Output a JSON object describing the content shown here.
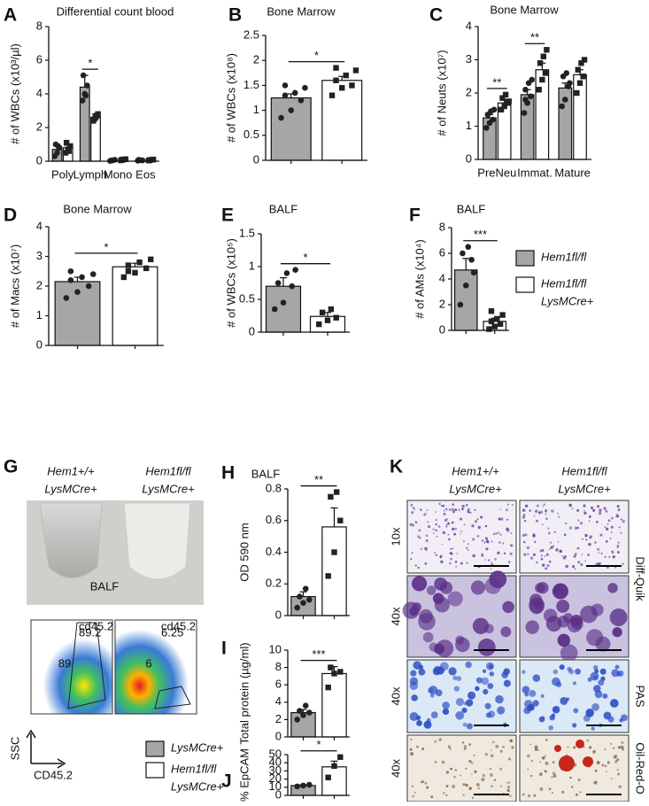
{
  "chart_data": [
    {
      "type": "bar",
      "panel": "A",
      "title": "Differential count blood",
      "ylabel": "# of WBCs (x10³/µl)",
      "categories": [
        "Poly",
        "Lymph",
        "Mono",
        "Eos"
      ],
      "series": [
        {
          "color": "#a6a6a6",
          "values": [
            0.7,
            4.4,
            0.05,
            0.05
          ],
          "errors": [
            0.2,
            0.7,
            0.02,
            0.02
          ],
          "points": [
            [
              0.3,
              0.5,
              0.8,
              1.0,
              0.9
            ],
            [
              3.6,
              4.0,
              4.5,
              5.1,
              3.9
            ],
            [
              0.02,
              0.05,
              0.08,
              0.04
            ],
            [
              0.03,
              0.06,
              0.05,
              0.08
            ]
          ]
        },
        {
          "color": "#ffffff",
          "values": [
            0.8,
            2.6,
            0.08,
            0.07
          ],
          "errors": [
            0.15,
            0.2,
            0.02,
            0.02
          ],
          "points": [
            [
              0.5,
              0.7,
              0.9,
              1.1,
              0.6
            ],
            [
              2.4,
              2.6,
              2.8,
              2.5,
              2.7
            ],
            [
              0.05,
              0.1,
              0.12,
              0.08
            ],
            [
              0.04,
              0.08,
              0.1,
              0.06
            ]
          ]
        }
      ],
      "significance": [
        {
          "label": "*",
          "category": 1
        }
      ],
      "ylim": [
        0,
        8
      ],
      "yticks": [
        0,
        2,
        4,
        6,
        8
      ]
    },
    {
      "type": "bar",
      "panel": "B",
      "title": "Bone Marrow",
      "ylabel": "# of WBCs (x10⁸)",
      "categories": [
        null,
        null
      ],
      "values": [
        1.25,
        1.6
      ],
      "errors": [
        0.08,
        0.08
      ],
      "colors": [
        "#a6a6a6",
        "#ffffff"
      ],
      "points": [
        [
          0.85,
          1.0,
          1.2,
          1.3,
          1.35,
          1.45,
          1.5
        ],
        [
          1.3,
          1.45,
          1.5,
          1.6,
          1.7,
          1.8,
          1.85
        ]
      ],
      "significance": "*",
      "ylim": [
        0,
        2.5
      ],
      "yticks": [
        0,
        0.5,
        1,
        1.5,
        2,
        2.5
      ]
    },
    {
      "type": "bar",
      "panel": "C",
      "title": "Bone Marrow",
      "ylabel": "# of Neuts (x10⁷)",
      "categories": [
        "PreNeu",
        "Immat.",
        "Mature"
      ],
      "series": [
        {
          "color": "#a6a6a6",
          "values": [
            1.25,
            1.95,
            2.15
          ],
          "errors": [
            0.1,
            0.15,
            0.15
          ],
          "points": [
            [
              0.95,
              1.1,
              1.2,
              1.35,
              1.45,
              1.5
            ],
            [
              1.4,
              1.7,
              1.9,
              2.1,
              2.3,
              2.4,
              1.8
            ],
            [
              1.6,
              1.8,
              2.2,
              2.5,
              2.6,
              2.3
            ]
          ]
        },
        {
          "color": "#ffffff",
          "values": [
            1.7,
            2.7,
            2.55
          ],
          "errors": [
            0.1,
            0.2,
            0.15
          ],
          "points": [
            [
              1.5,
              1.6,
              1.7,
              1.85,
              1.95,
              1.75
            ],
            [
              2.1,
              2.4,
              2.6,
              2.9,
              3.1,
              3.3
            ],
            [
              2.0,
              2.3,
              2.5,
              2.7,
              2.9,
              3.0
            ]
          ]
        }
      ],
      "significance": [
        {
          "label": "**",
          "category": 0
        },
        {
          "label": "**",
          "category": 1
        }
      ],
      "ylim": [
        0,
        4
      ],
      "yticks": [
        0,
        1,
        2,
        3,
        4
      ]
    },
    {
      "type": "bar",
      "panel": "D",
      "title": "Bone Marrow",
      "ylabel": "# of Macs (x10⁷)",
      "categories": [
        null,
        null
      ],
      "values": [
        2.15,
        2.65
      ],
      "errors": [
        0.15,
        0.12
      ],
      "colors": [
        "#a6a6a6",
        "#ffffff"
      ],
      "points": [
        [
          1.6,
          1.8,
          2.0,
          2.2,
          2.3,
          2.4,
          2.5
        ],
        [
          2.3,
          2.45,
          2.6,
          2.7,
          2.8,
          2.9,
          2.5
        ]
      ],
      "significance": "*",
      "ylim": [
        0,
        4
      ],
      "yticks": [
        0,
        1,
        2,
        3,
        4
      ]
    },
    {
      "type": "bar",
      "panel": "E",
      "title": "BALF",
      "ylabel": "# of WBCs (x10⁵)",
      "categories": [
        null,
        null
      ],
      "values": [
        0.7,
        0.24
      ],
      "errors": [
        0.13,
        0.06
      ],
      "colors": [
        "#a6a6a6",
        "#ffffff"
      ],
      "points": [
        [
          0.35,
          0.45,
          0.7,
          0.75,
          0.9,
          0.95
        ],
        [
          0.12,
          0.18,
          0.22,
          0.3,
          0.35
        ]
      ],
      "significance": "*",
      "ylim": [
        0,
        1.5
      ],
      "yticks": [
        0,
        0.5,
        1,
        1.5
      ]
    },
    {
      "type": "bar",
      "panel": "F",
      "title": "BALF",
      "ylabel": "# of AMs (x10⁴)",
      "categories": [
        null,
        null
      ],
      "values": [
        4.7,
        0.7
      ],
      "errors": [
        0.9,
        0.25
      ],
      "colors": [
        "#a6a6a6",
        "#ffffff"
      ],
      "points": [
        [
          2.0,
          3.5,
          5.5,
          6.0,
          6.5,
          4.5
        ],
        [
          0.1,
          0.3,
          0.5,
          0.7,
          0.9,
          1.2,
          1.5
        ]
      ],
      "significance": "***",
      "ylim": [
        0,
        8
      ],
      "yticks": [
        0,
        2,
        4,
        6,
        8
      ]
    },
    {
      "type": "bar",
      "panel": "H",
      "title": "BALF",
      "ylabel": "OD 590 nm",
      "categories": [
        null,
        null
      ],
      "values": [
        0.12,
        0.56
      ],
      "errors": [
        0.03,
        0.12
      ],
      "colors": [
        "#a6a6a6",
        "#ffffff"
      ],
      "points": [
        [
          0.05,
          0.08,
          0.1,
          0.12,
          0.17
        ],
        [
          0.25,
          0.4,
          0.6,
          0.75,
          0.78
        ]
      ],
      "significance": "**",
      "ylim": [
        0,
        0.8
      ],
      "yticks": [
        0,
        0.2,
        0.4,
        0.6,
        0.8
      ]
    },
    {
      "type": "bar",
      "panel": "I",
      "ylabel": "Total protein (µg/ml)",
      "categories": [
        null,
        null
      ],
      "values": [
        2.8,
        7.3
      ],
      "errors": [
        0.35,
        0.8
      ],
      "colors": [
        "#a6a6a6",
        "#ffffff"
      ],
      "points": [
        [
          2.0,
          2.5,
          2.8,
          3.0,
          3.6
        ],
        [
          5.7,
          7.3,
          7.5,
          8.0
        ]
      ],
      "significance": "***",
      "ylim": [
        0,
        10
      ],
      "yticks": [
        0,
        2,
        4,
        6,
        8,
        10
      ]
    },
    {
      "type": "bar",
      "panel": "J",
      "ylabel": "% EpCAM",
      "categories": [
        null,
        null
      ],
      "values": [
        12,
        35
      ],
      "errors": [
        1,
        7
      ],
      "colors": [
        "#a6a6a6",
        "#ffffff"
      ],
      "points": [
        [
          11,
          12,
          13
        ],
        [
          22,
          36,
          47
        ]
      ],
      "significance": "*",
      "ylim": [
        0,
        50
      ],
      "yticks": [
        0,
        10,
        20,
        30,
        40,
        50
      ]
    }
  ],
  "legend_1": {
    "entries": [
      {
        "lines": [
          "Hem1fl/fl"
        ],
        "color": "#a6a6a6"
      },
      {
        "lines": [
          "Hem1fl/fl",
          "LysMCre+"
        ],
        "color": "#ffffff"
      }
    ]
  },
  "legend_2": {
    "entries": [
      {
        "lines": [
          "LysMCre+"
        ],
        "color": "#a6a6a6"
      },
      {
        "lines": [
          "Hem1fl/fl",
          "LysMCre+"
        ],
        "color": "#ffffff"
      }
    ]
  },
  "panel_g": {
    "letter": "G",
    "columns": [
      [
        "Hem1+/+",
        "LysMCre+"
      ],
      [
        "Hem1fl/fl",
        "LysMCre+"
      ]
    ],
    "photo_label": "BALF",
    "flow": [
      {
        "gate": "cd45.2",
        "gate_percent": 89.2,
        "label": 89
      },
      {
        "gate": "cd45.2",
        "gate_percent": 6.25,
        "label": 6
      }
    ],
    "axes": {
      "y": "SSC",
      "x": "CD45.2"
    }
  },
  "panel_k": {
    "letter": "K",
    "columns": [
      [
        "Hem1+/+",
        "LysMCre+"
      ],
      [
        "Hem1fl/fl",
        "LysMCre+"
      ]
    ],
    "rows": [
      {
        "magnification": "10x"
      },
      {
        "magnification": "40x"
      },
      {
        "magnification": "40x"
      },
      {
        "magnification": "40x"
      }
    ],
    "stains": [
      {
        "label": "Diff-Quik",
        "rows": [
          0,
          1
        ]
      },
      {
        "label": "PAS",
        "rows": [
          2
        ]
      },
      {
        "label": "Oil-Red-O",
        "rows": [
          3
        ]
      }
    ]
  }
}
